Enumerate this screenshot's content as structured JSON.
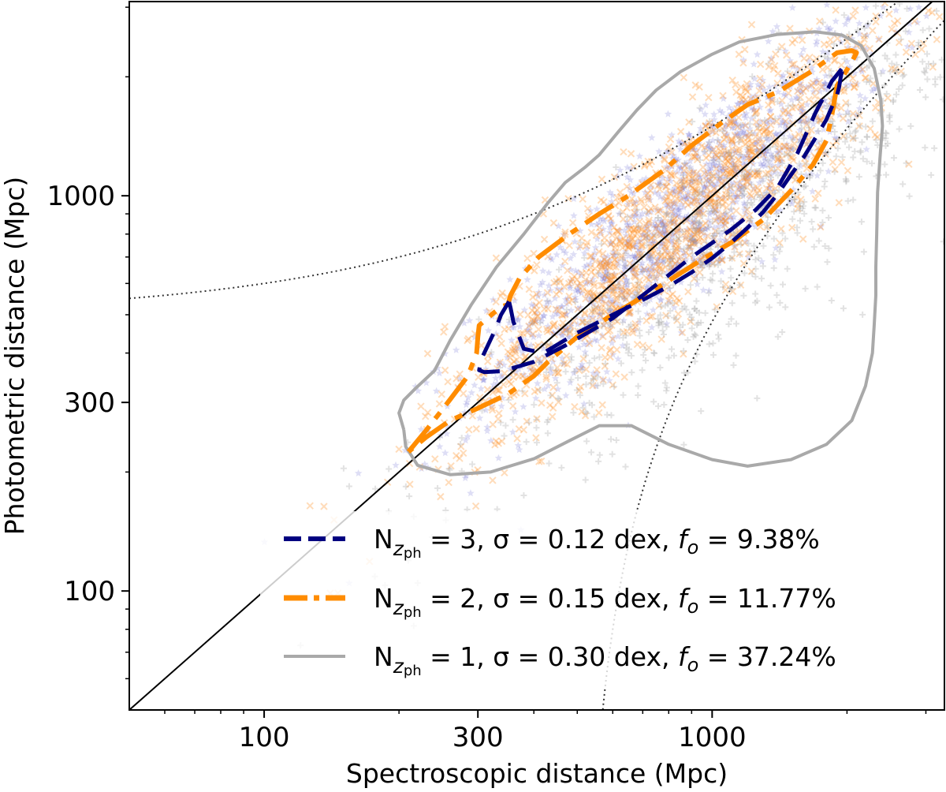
{
  "chart_data": {
    "type": "scatter",
    "xlabel": "Spectroscopic distance (Mpc)",
    "ylabel": "Photometric distance (Mpc)",
    "xscale": "log",
    "yscale": "log",
    "xlim": [
      50,
      3300
    ],
    "ylim": [
      50,
      3100
    ],
    "xticks": [
      {
        "value": 100,
        "label": "100"
      },
      {
        "value": 300,
        "label": "300"
      },
      {
        "value": 1000,
        "label": "1000"
      }
    ],
    "yticks": [
      {
        "value": 100,
        "label": "100"
      },
      {
        "value": 300,
        "label": "300"
      },
      {
        "value": 1000,
        "label": "1000"
      }
    ],
    "grid": false,
    "legend_position": "bottom-right",
    "reference_lines": [
      {
        "name": "one-to-one",
        "style": "solid",
        "color": "#000000"
      },
      {
        "name": "upper-bound",
        "style": "dotted",
        "color": "#333333"
      },
      {
        "name": "lower-bound",
        "style": "dotted",
        "color": "#333333"
      }
    ],
    "scatter_series": [
      {
        "name": "N_zph = 3",
        "marker": "star",
        "color": "#6a6ad0",
        "center": [
          850,
          900
        ],
        "spread_dex": 0.2,
        "count": 1300
      },
      {
        "name": "N_zph = 2",
        "marker": "x",
        "color": "#ff8c1a",
        "center": [
          820,
          850
        ],
        "spread_dex": 0.22,
        "count": 1300
      },
      {
        "name": "N_zph = 1",
        "marker": "plus",
        "color": "#a0a0a0",
        "center": [
          1100,
          800
        ],
        "spread_dex": 0.25,
        "count": 800
      }
    ],
    "series": [
      {
        "name": "N_zph = 3",
        "color": "#000080",
        "linestyle": "dashed",
        "linewidth": 5,
        "points": [
          [
            352,
            540
          ],
          [
            338,
            500
          ],
          [
            327,
            455
          ],
          [
            305,
            385
          ],
          [
            302,
            362
          ],
          [
            310,
            358
          ],
          [
            340,
            360
          ],
          [
            400,
            380
          ],
          [
            470,
            418
          ],
          [
            600,
            490
          ],
          [
            700,
            560
          ],
          [
            800,
            630
          ],
          [
            900,
            700
          ],
          [
            1000,
            760
          ],
          [
            1100,
            820
          ],
          [
            1250,
            920
          ],
          [
            1400,
            1050
          ],
          [
            1550,
            1280
          ],
          [
            1700,
            1620
          ],
          [
            1850,
            1950
          ],
          [
            1950,
            2100
          ],
          [
            1975,
            2150
          ],
          [
            1965,
            2120
          ],
          [
            1940,
            2020
          ],
          [
            1920,
            1880
          ],
          [
            1900,
            1800
          ],
          [
            1800,
            1560
          ],
          [
            1700,
            1400
          ],
          [
            1600,
            1250
          ],
          [
            1500,
            1130
          ],
          [
            1400,
            1010
          ],
          [
            1300,
            910
          ],
          [
            1200,
            830
          ],
          [
            1100,
            760
          ],
          [
            1000,
            695
          ],
          [
            900,
            640
          ],
          [
            800,
            590
          ],
          [
            700,
            545
          ],
          [
            600,
            500
          ],
          [
            500,
            450
          ],
          [
            420,
            400
          ],
          [
            380,
            410
          ],
          [
            360,
            480
          ],
          [
            355,
            520
          ],
          [
            352,
            540
          ]
        ]
      },
      {
        "name": "N_zph = 2",
        "color": "#ff8c00",
        "linestyle": "dashdot",
        "linewidth": 6,
        "points": [
          [
            210,
            225
          ],
          [
            230,
            255
          ],
          [
            260,
            305
          ],
          [
            285,
            350
          ],
          [
            298,
            400
          ],
          [
            300,
            440
          ],
          [
            302,
            470
          ],
          [
            325,
            505
          ],
          [
            340,
            525
          ],
          [
            350,
            530
          ],
          [
            355,
            560
          ],
          [
            372,
            620
          ],
          [
            410,
            700
          ],
          [
            480,
            800
          ],
          [
            560,
            900
          ],
          [
            650,
            1000
          ],
          [
            780,
            1160
          ],
          [
            900,
            1340
          ],
          [
            1050,
            1530
          ],
          [
            1200,
            1700
          ],
          [
            1400,
            1830
          ],
          [
            1650,
            2050
          ],
          [
            1900,
            2300
          ],
          [
            2050,
            2330
          ],
          [
            2100,
            2300
          ],
          [
            2050,
            2180
          ],
          [
            1900,
            1900
          ],
          [
            1850,
            1600
          ],
          [
            1800,
            1380
          ],
          [
            1680,
            1200
          ],
          [
            1500,
            1030
          ],
          [
            1300,
            870
          ],
          [
            1100,
            760
          ],
          [
            950,
            690
          ],
          [
            800,
            610
          ],
          [
            700,
            555
          ],
          [
            600,
            500
          ],
          [
            500,
            440
          ],
          [
            430,
            380
          ],
          [
            400,
            350
          ],
          [
            350,
            315
          ],
          [
            300,
            290
          ],
          [
            260,
            270
          ],
          [
            230,
            245
          ],
          [
            210,
            225
          ]
        ]
      },
      {
        "name": "N_zph = 1",
        "color": "#a9a9a9",
        "linestyle": "solid",
        "linewidth": 4,
        "points": [
          [
            205,
            256
          ],
          [
            200,
            282
          ],
          [
            205,
            304
          ],
          [
            218,
            326
          ],
          [
            240,
            361
          ],
          [
            260,
            430
          ],
          [
            290,
            530
          ],
          [
            330,
            660
          ],
          [
            380,
            800
          ],
          [
            430,
            960
          ],
          [
            470,
            1080
          ],
          [
            520,
            1180
          ],
          [
            560,
            1270
          ],
          [
            620,
            1460
          ],
          [
            680,
            1650
          ],
          [
            750,
            1850
          ],
          [
            850,
            2060
          ],
          [
            1000,
            2280
          ],
          [
            1150,
            2450
          ],
          [
            1400,
            2560
          ],
          [
            1700,
            2600
          ],
          [
            1950,
            2550
          ],
          [
            2150,
            2400
          ],
          [
            2300,
            2100
          ],
          [
            2380,
            1750
          ],
          [
            2400,
            1500
          ],
          [
            2370,
            1250
          ],
          [
            2340,
            1020
          ],
          [
            2330,
            800
          ],
          [
            2320,
            660
          ],
          [
            2320,
            560
          ],
          [
            2300,
            470
          ],
          [
            2280,
            400
          ],
          [
            2200,
            330
          ],
          [
            2050,
            270
          ],
          [
            1800,
            235
          ],
          [
            1500,
            215
          ],
          [
            1200,
            207
          ],
          [
            1000,
            215
          ],
          [
            800,
            235
          ],
          [
            660,
            262
          ],
          [
            560,
            262
          ],
          [
            480,
            240
          ],
          [
            400,
            216
          ],
          [
            320,
            200
          ],
          [
            260,
            197
          ],
          [
            220,
            208
          ],
          [
            207,
            232
          ],
          [
            205,
            256
          ]
        ]
      }
    ]
  },
  "legend": [
    {
      "mark": "N",
      "sub": "z",
      "subsub": "ph",
      "rest": " = 3, σ = 0.12 dex, ",
      "f": "f",
      "fsub": "o",
      "fval": " = 9.38%"
    },
    {
      "mark": "N",
      "sub": "z",
      "subsub": "ph",
      "rest": " = 2, σ = 0.15 dex, ",
      "f": "f",
      "fsub": "o",
      "fval": " = 11.77%"
    },
    {
      "mark": "N",
      "sub": "z",
      "subsub": "ph",
      "rest": " = 1, σ = 0.30 dex, ",
      "f": "f",
      "fsub": "o",
      "fval": " = 37.24%"
    }
  ]
}
